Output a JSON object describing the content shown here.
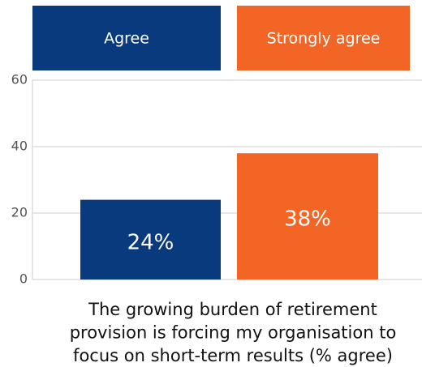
{
  "chart_data": {
    "type": "bar",
    "series": [
      {
        "name": "Agree",
        "color": "#0a3a7e",
        "values": [
          24
        ],
        "value_labels": [
          "24%"
        ]
      },
      {
        "name": "Strongly agree",
        "color": "#f26524",
        "values": [
          38
        ],
        "value_labels": [
          "38%"
        ]
      }
    ],
    "ylim": [
      0,
      60
    ],
    "yticks": [
      0,
      20,
      40,
      60
    ],
    "grid": true,
    "x_label": [
      "The growing burden of retirement",
      "provision is forcing my organisation to",
      "focus on short-term results (% agree)"
    ]
  }
}
